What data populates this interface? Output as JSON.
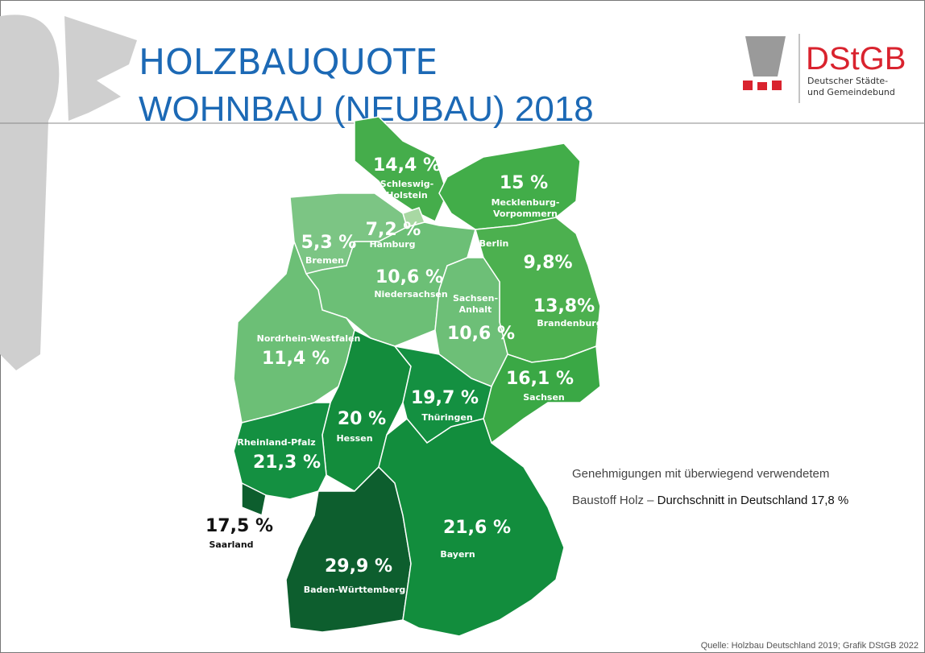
{
  "header": {
    "title": "HOLZBAUQUOTE",
    "subtitle": "WOHNBAU (NEUBAU) 2018"
  },
  "logo": {
    "name": "DStGB",
    "lines": [
      "Deutscher Städte-",
      "und Gemeindebund"
    ]
  },
  "regions": [
    {
      "name": [
        "Schleswig-",
        "Holstein"
      ],
      "value": "14,4 %"
    },
    {
      "name": [
        "Mecklenburg-",
        "Vorpommern"
      ],
      "value": "15 %"
    },
    {
      "name": [
        "Hamburg"
      ],
      "value": "7,2 %"
    },
    {
      "name": [
        "Bremen"
      ],
      "value": "5,3 %"
    },
    {
      "name": [
        "Niedersachsen"
      ],
      "value": "10,6 %"
    },
    {
      "name": [
        "Berlin"
      ],
      "value": "9,8%"
    },
    {
      "name": [
        "Brandenburg"
      ],
      "value": "13,8%"
    },
    {
      "name": [
        "Sachsen-",
        "Anhalt"
      ],
      "value": "10,6 %"
    },
    {
      "name": [
        "Sachsen"
      ],
      "value": "16,1 %"
    },
    {
      "name": [
        "Nordrhein-Westfalen"
      ],
      "value": "11,4 %"
    },
    {
      "name": [
        "Hessen"
      ],
      "value": "20 %"
    },
    {
      "name": [
        "Thüringen"
      ],
      "value": "19,7 %"
    },
    {
      "name": [
        "Rheinland-Pfalz"
      ],
      "value": "21,3 %"
    },
    {
      "name": [
        "Saarland"
      ],
      "value": "17,5 %"
    },
    {
      "name": [
        "Baden-Württemberg"
      ],
      "value": "29,9 %"
    },
    {
      "name": [
        "Bayern"
      ],
      "value": "21,6 %"
    }
  ],
  "note": {
    "line1": "Genehmigungen mit überwiegend verwendetem",
    "line2": "Baustoff Holz – ",
    "line2_bold": "Durchschnitt in Deutschland 17,8 %"
  },
  "source": "Quelle: Holzbau Deutschland 2019; Grafik DStGB 2022"
}
